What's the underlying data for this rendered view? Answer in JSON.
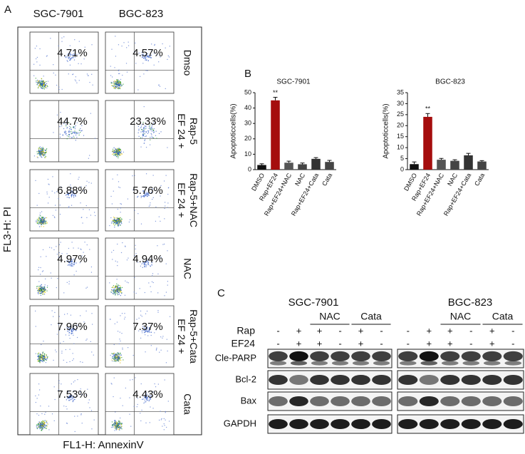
{
  "panel_a": {
    "label": "A",
    "cell_lines": [
      "SGC-7901",
      "BGC-823"
    ],
    "y_axis_label": "FL3-H: PI",
    "x_axis_label": "FL1-H: AnnexinV",
    "conditions": [
      {
        "lines": [
          "Dmso"
        ],
        "percent": [
          "4.71%",
          "4.57%"
        ]
      },
      {
        "lines": [
          "EF 24 +",
          "Rap-5"
        ],
        "percent": [
          "44.7%",
          "23.33%"
        ]
      },
      {
        "lines": [
          "EF 24 +",
          "Rap-5+NAC"
        ],
        "percent": [
          "6.88%",
          "5.76%"
        ]
      },
      {
        "lines": [
          "NAC"
        ],
        "percent": [
          "4.97%",
          "4.94%"
        ]
      },
      {
        "lines": [
          "EF 24 +",
          "Rap-5+Cata"
        ],
        "percent": [
          "7.96%",
          "7.37%"
        ]
      },
      {
        "lines": [
          "Cata"
        ],
        "percent": [
          "7.53%",
          "4.43%"
        ]
      }
    ]
  },
  "panel_b": {
    "label": "B"
  },
  "chart_data": [
    {
      "type": "bar",
      "title": "SGC-7901",
      "y_label": "Apoptoticcells(%)",
      "categories": [
        "DMSO",
        "Rap+EF24",
        "Rap+EF24+NAC",
        "NAC",
        "Rap+EF24+Cata",
        "Cata"
      ],
      "values": [
        3,
        45,
        4.5,
        3.5,
        7,
        5
      ],
      "errors": [
        0.8,
        2,
        1,
        0.8,
        0.8,
        1
      ],
      "colors": [
        "#111111",
        "#a50d0d",
        "#555555",
        "#444444",
        "#333333",
        "#444444"
      ],
      "annotation": {
        "text": "**",
        "category": "Rap+EF24"
      },
      "ylim": [
        0,
        50
      ],
      "yticks": [
        0,
        10,
        20,
        30,
        40,
        50
      ]
    },
    {
      "type": "bar",
      "title": "BGC-823",
      "y_label": "Apoptoticcells(%)",
      "categories": [
        "DMSO",
        "Rap+EF24",
        "Rap+EF24+NAC",
        "NAC",
        "Rap+EF24+Cata",
        "Cata"
      ],
      "values": [
        2.5,
        24,
        4.5,
        4,
        6.5,
        3.7
      ],
      "errors": [
        1,
        1.5,
        0.6,
        0.5,
        0.9,
        0.4
      ],
      "colors": [
        "#111111",
        "#a50d0d",
        "#555555",
        "#444444",
        "#333333",
        "#444444"
      ],
      "annotation": {
        "text": "**",
        "category": "Rap+EF24"
      },
      "ylim": [
        0,
        35
      ],
      "yticks": [
        0,
        5,
        10,
        15,
        20,
        25,
        30,
        35
      ]
    }
  ],
  "panel_c": {
    "label": "C",
    "cell_lines": [
      "SGC-7901",
      "BGC-823"
    ],
    "groups": [
      "NAC",
      "Cata"
    ],
    "treatments": [
      {
        "name": "Rap",
        "signs": [
          "-",
          "+",
          "+",
          "-",
          "+",
          "-"
        ]
      },
      {
        "name": "EF24",
        "signs": [
          "-",
          "+",
          "+",
          "-",
          "+",
          "-"
        ]
      }
    ],
    "proteins": [
      "Cle-PARP",
      "Bcl-2",
      "Bax",
      "GAPDH"
    ]
  }
}
